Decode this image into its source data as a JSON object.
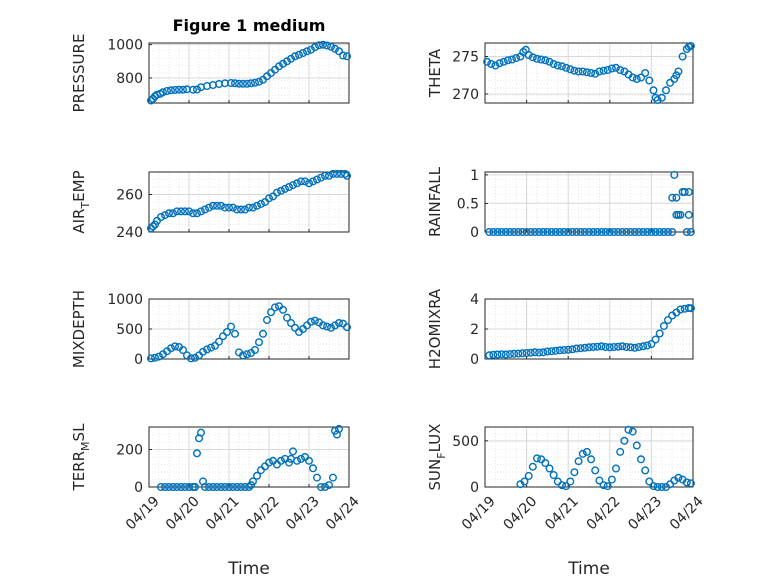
{
  "figure_title": "Figure 1 medium",
  "colors": {
    "marker": "#0072BD",
    "axes": "#262626",
    "grid": "#d9d9d9"
  },
  "chart_data": [
    {
      "type": "scatter",
      "ylabel_main": "PRESSURE",
      "ylabel_sub": "",
      "ylim": [
        650,
        1010
      ],
      "yticks": [
        800,
        1000
      ],
      "ytick_labels": [
        "800",
        "1000"
      ],
      "xlim": [
        0,
        5
      ],
      "xtick_labels": [],
      "x": [
        0.05,
        0.1,
        0.15,
        0.2,
        0.28,
        0.35,
        0.45,
        0.55,
        0.65,
        0.75,
        0.85,
        0.95,
        1.1,
        1.2,
        1.3,
        1.45,
        1.6,
        1.75,
        1.9,
        2.05,
        2.15,
        2.25,
        2.35,
        2.45,
        2.55,
        2.65,
        2.75,
        2.85,
        2.95,
        3.05,
        3.15,
        3.25,
        3.35,
        3.45,
        3.55,
        3.65,
        3.75,
        3.85,
        3.95,
        4.05,
        4.15,
        4.25,
        4.35,
        4.45,
        4.55,
        4.65,
        4.75,
        4.85,
        4.95
      ],
      "y": [
        665,
        675,
        690,
        700,
        705,
        715,
        722,
        726,
        728,
        730,
        730,
        732,
        730,
        731,
        745,
        752,
        758,
        764,
        768,
        770,
        768,
        766,
        765,
        766,
        768,
        772,
        778,
        790,
        810,
        830,
        850,
        870,
        885,
        900,
        915,
        930,
        940,
        950,
        960,
        970,
        985,
        997,
        1000,
        995,
        988,
        975,
        960,
        935,
        930
      ]
    },
    {
      "type": "scatter",
      "ylabel_main": "THETA",
      "ylabel_sub": "",
      "ylim": [
        268.8,
        276.8
      ],
      "yticks": [
        270,
        275
      ],
      "ytick_labels": [
        "270",
        "275"
      ],
      "xlim": [
        0,
        5
      ],
      "xtick_labels": [],
      "x": [
        0.05,
        0.15,
        0.25,
        0.35,
        0.45,
        0.55,
        0.65,
        0.75,
        0.85,
        0.92,
        0.98,
        1.05,
        1.15,
        1.25,
        1.35,
        1.45,
        1.55,
        1.65,
        1.75,
        1.85,
        1.95,
        2.05,
        2.15,
        2.25,
        2.35,
        2.45,
        2.55,
        2.65,
        2.75,
        2.85,
        2.95,
        3.05,
        3.15,
        3.25,
        3.35,
        3.45,
        3.55,
        3.65,
        3.75,
        3.85,
        3.95,
        4.05,
        4.1,
        4.15,
        4.25,
        4.35,
        4.45,
        4.55,
        4.6,
        4.65,
        4.75,
        4.85,
        4.9,
        4.95
      ],
      "y": [
        274.3,
        274.0,
        273.8,
        274.1,
        274.3,
        274.5,
        274.6,
        274.8,
        275.0,
        275.6,
        275.9,
        275.2,
        274.9,
        274.7,
        274.6,
        274.5,
        274.3,
        274.0,
        273.8,
        273.7,
        273.5,
        273.3,
        273.1,
        273.0,
        273.0,
        272.9,
        272.8,
        272.7,
        273.0,
        273.1,
        273.2,
        273.4,
        273.5,
        273.2,
        273.0,
        272.6,
        272.2,
        272.0,
        272.2,
        272.8,
        271.8,
        270.5,
        269.5,
        269.2,
        269.5,
        270.5,
        271.5,
        272.0,
        272.5,
        273.0,
        275.0,
        276.0,
        276.3,
        276.4
      ]
    },
    {
      "type": "scatter",
      "ylabel_main": "AIR",
      "ylabel_sub": "T",
      "ylabel_tail": "EMP",
      "ylim": [
        240,
        272
      ],
      "yticks": [
        240,
        260
      ],
      "ytick_labels": [
        "240",
        "260"
      ],
      "xlim": [
        0,
        5
      ],
      "xtick_labels": [],
      "x": [
        0.05,
        0.1,
        0.15,
        0.2,
        0.3,
        0.4,
        0.5,
        0.6,
        0.7,
        0.8,
        0.9,
        1.0,
        1.1,
        1.2,
        1.3,
        1.4,
        1.5,
        1.6,
        1.7,
        1.8,
        1.9,
        2.0,
        2.1,
        2.2,
        2.3,
        2.4,
        2.5,
        2.6,
        2.7,
        2.8,
        2.9,
        3.0,
        3.1,
        3.2,
        3.3,
        3.4,
        3.5,
        3.6,
        3.7,
        3.8,
        3.9,
        4.0,
        4.1,
        4.2,
        4.3,
        4.4,
        4.5,
        4.6,
        4.7,
        4.8,
        4.9,
        4.95
      ],
      "y": [
        242,
        243,
        244,
        246,
        248,
        249,
        250,
        250,
        251,
        251,
        251,
        251,
        250,
        250,
        251,
        252,
        253,
        254,
        254,
        254,
        253,
        253,
        253,
        252,
        252,
        252,
        253,
        253,
        254,
        255,
        256,
        258,
        259,
        261,
        262,
        263,
        264,
        265,
        266,
        267,
        267,
        266,
        267,
        268,
        269,
        270,
        270,
        271,
        271,
        271,
        271,
        270
      ]
    },
    {
      "type": "scatter",
      "ylabel_main": "RAINFALL",
      "ylabel_sub": "",
      "ylim": [
        0,
        1.05
      ],
      "yticks": [
        0,
        0.5,
        1
      ],
      "ytick_labels": [
        "0",
        "0.5",
        "1"
      ],
      "xlim": [
        0,
        5
      ],
      "xtick_labels": [],
      "x": [
        0.1,
        0.2,
        0.3,
        0.4,
        0.5,
        0.6,
        0.7,
        0.8,
        0.9,
        1.0,
        1.1,
        1.2,
        1.3,
        1.4,
        1.5,
        1.6,
        1.7,
        1.8,
        1.9,
        2.0,
        2.1,
        2.2,
        2.3,
        2.4,
        2.5,
        2.6,
        2.7,
        2.8,
        2.9,
        3.0,
        3.1,
        3.2,
        3.3,
        3.4,
        3.5,
        3.6,
        3.7,
        3.8,
        3.9,
        4.0,
        4.1,
        4.2,
        4.3,
        4.4,
        4.5,
        4.5,
        4.55,
        4.6,
        4.6,
        4.65,
        4.7,
        4.75,
        4.8,
        4.85,
        4.9,
        4.9,
        4.95
      ],
      "y": [
        0,
        0,
        0,
        0,
        0,
        0,
        0,
        0,
        0,
        0,
        0,
        0,
        0,
        0,
        0,
        0,
        0,
        0,
        0,
        0,
        0,
        0,
        0,
        0,
        0,
        0,
        0,
        0,
        0,
        0,
        0,
        0,
        0,
        0,
        0,
        0,
        0,
        0,
        0,
        0,
        0,
        0,
        0,
        0,
        0,
        0.6,
        1.0,
        0.6,
        0.3,
        0.3,
        0.3,
        0.7,
        0.7,
        0,
        0.3,
        0.7,
        0
      ]
    },
    {
      "type": "scatter",
      "ylabel_main": "MIXDEPTH",
      "ylabel_sub": "",
      "ylim": [
        0,
        1000
      ],
      "yticks": [
        0,
        500,
        1000
      ],
      "ytick_labels": [
        "0",
        "500",
        "1000"
      ],
      "xlim": [
        0,
        5
      ],
      "xtick_labels": [],
      "x": [
        0.05,
        0.15,
        0.25,
        0.35,
        0.45,
        0.55,
        0.65,
        0.75,
        0.85,
        0.95,
        1.05,
        1.15,
        1.25,
        1.35,
        1.45,
        1.55,
        1.65,
        1.75,
        1.85,
        1.95,
        2.05,
        2.15,
        2.25,
        2.35,
        2.45,
        2.55,
        2.65,
        2.75,
        2.85,
        2.95,
        3.05,
        3.15,
        3.25,
        3.35,
        3.45,
        3.55,
        3.65,
        3.75,
        3.85,
        3.95,
        4.05,
        4.15,
        4.25,
        4.35,
        4.45,
        4.55,
        4.65,
        4.75,
        4.85,
        4.95
      ],
      "y": [
        10,
        20,
        40,
        80,
        130,
        180,
        210,
        200,
        150,
        60,
        10,
        20,
        60,
        120,
        160,
        190,
        220,
        290,
        380,
        450,
        540,
        420,
        110,
        60,
        80,
        100,
        150,
        280,
        420,
        650,
        780,
        860,
        880,
        820,
        690,
        600,
        520,
        450,
        500,
        560,
        620,
        640,
        610,
        560,
        540,
        520,
        560,
        600,
        590,
        530
      ]
    },
    {
      "type": "scatter",
      "ylabel_main": "H2OMIXRA",
      "ylabel_sub": "",
      "ylim": [
        0,
        4
      ],
      "yticks": [
        0,
        2,
        4
      ],
      "ytick_labels": [
        "0",
        "2",
        "4"
      ],
      "xlim": [
        0,
        5
      ],
      "xtick_labels": [],
      "x": [
        0.1,
        0.2,
        0.3,
        0.4,
        0.5,
        0.6,
        0.7,
        0.8,
        0.9,
        1.0,
        1.1,
        1.2,
        1.3,
        1.4,
        1.5,
        1.6,
        1.7,
        1.8,
        1.9,
        2.0,
        2.1,
        2.2,
        2.3,
        2.4,
        2.5,
        2.6,
        2.7,
        2.8,
        2.9,
        3.0,
        3.1,
        3.2,
        3.3,
        3.4,
        3.5,
        3.6,
        3.7,
        3.8,
        3.9,
        4.0,
        4.1,
        4.2,
        4.3,
        4.4,
        4.5,
        4.6,
        4.7,
        4.8,
        4.9,
        4.95
      ],
      "y": [
        0.25,
        0.28,
        0.3,
        0.32,
        0.3,
        0.33,
        0.35,
        0.36,
        0.38,
        0.4,
        0.42,
        0.45,
        0.43,
        0.45,
        0.5,
        0.52,
        0.55,
        0.58,
        0.6,
        0.62,
        0.65,
        0.7,
        0.72,
        0.75,
        0.78,
        0.8,
        0.82,
        0.85,
        0.8,
        0.78,
        0.8,
        0.82,
        0.85,
        0.8,
        0.78,
        0.75,
        0.8,
        0.85,
        0.9,
        1.0,
        1.3,
        1.7,
        2.2,
        2.6,
        2.9,
        3.1,
        3.3,
        3.35,
        3.4,
        3.38
      ]
    },
    {
      "type": "scatter",
      "ylabel_main": "TERR",
      "ylabel_sub": "M",
      "ylabel_tail": "SL",
      "ylim": [
        0,
        320
      ],
      "yticks": [
        0,
        200
      ],
      "ytick_labels": [
        "0",
        "200"
      ],
      "xlim": [
        0,
        5
      ],
      "xtick_labels": [
        "04/19",
        "04/20",
        "04/21",
        "04/22",
        "04/23",
        "04/24"
      ],
      "xlabel": "Time",
      "x": [
        0.3,
        0.4,
        0.5,
        0.6,
        0.7,
        0.8,
        0.9,
        1.0,
        1.1,
        1.15,
        1.2,
        1.25,
        1.3,
        1.35,
        1.4,
        1.5,
        1.6,
        1.7,
        1.8,
        1.9,
        2.0,
        2.1,
        2.2,
        2.3,
        2.4,
        2.5,
        2.55,
        2.6,
        2.7,
        2.8,
        2.9,
        3.0,
        3.1,
        3.2,
        3.3,
        3.4,
        3.5,
        3.55,
        3.6,
        3.7,
        3.8,
        3.9,
        4.0,
        4.1,
        4.2,
        4.3,
        4.4,
        4.5,
        4.6,
        4.65,
        4.7,
        4.75
      ],
      "y": [
        0,
        0,
        0,
        0,
        0,
        0,
        0,
        0,
        0,
        0,
        180,
        260,
        290,
        30,
        0,
        0,
        0,
        0,
        0,
        0,
        0,
        0,
        0,
        0,
        0,
        0,
        10,
        30,
        60,
        90,
        110,
        130,
        140,
        120,
        140,
        150,
        130,
        150,
        190,
        140,
        150,
        160,
        140,
        100,
        50,
        0,
        0,
        10,
        50,
        300,
        280,
        310
      ]
    },
    {
      "type": "scatter",
      "ylabel_main": "SUN",
      "ylabel_sub": "F",
      "ylabel_tail": "LUX",
      "ylim": [
        0,
        650
      ],
      "yticks": [
        0,
        500
      ],
      "ytick_labels": [
        "0",
        "500"
      ],
      "xlim": [
        0,
        5
      ],
      "xtick_labels": [
        "04/19",
        "04/20",
        "04/21",
        "04/22",
        "04/23",
        "04/24"
      ],
      "xlabel": "Time",
      "x": [
        0.85,
        0.95,
        1.05,
        1.15,
        1.25,
        1.35,
        1.45,
        1.55,
        1.65,
        1.75,
        1.85,
        1.95,
        2.05,
        2.15,
        2.25,
        2.35,
        2.45,
        2.55,
        2.65,
        2.75,
        2.85,
        2.95,
        3.05,
        3.15,
        3.25,
        3.35,
        3.45,
        3.55,
        3.65,
        3.75,
        3.85,
        3.95,
        4.05,
        4.15,
        4.25,
        4.35,
        4.45,
        4.55,
        4.65,
        4.75,
        4.85,
        4.95
      ],
      "y": [
        30,
        60,
        120,
        220,
        310,
        300,
        260,
        200,
        130,
        60,
        20,
        10,
        60,
        160,
        280,
        360,
        380,
        300,
        180,
        70,
        20,
        10,
        80,
        200,
        380,
        500,
        620,
        600,
        450,
        300,
        180,
        60,
        10,
        0,
        0,
        0,
        30,
        70,
        100,
        80,
        50,
        40
      ]
    }
  ]
}
